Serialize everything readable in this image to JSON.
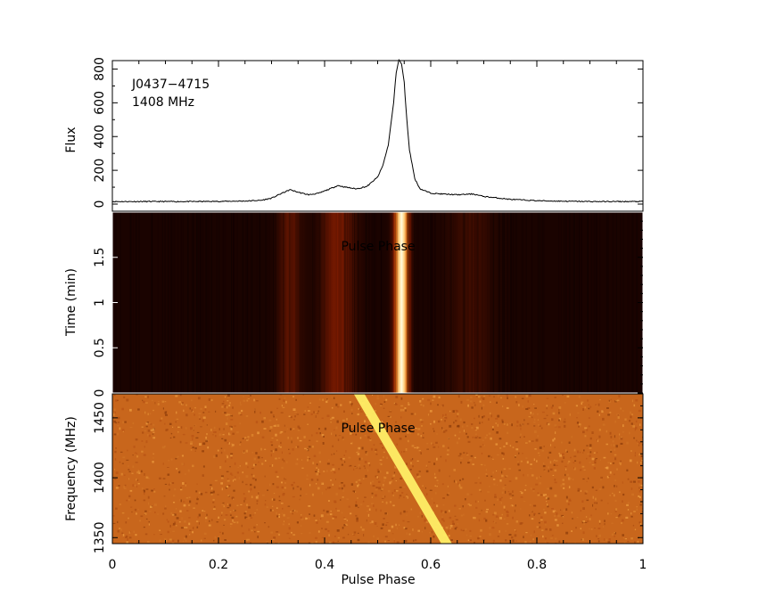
{
  "source": {
    "name": "J0437−4715",
    "frequency_label": "1408 MHz"
  },
  "chart_data": [
    {
      "type": "line",
      "panel": "profile",
      "ylabel": "Flux",
      "xlim": [
        0,
        1
      ],
      "ylim": [
        0,
        850
      ],
      "yticks": [
        "0",
        "200",
        "400",
        "600",
        "800"
      ],
      "annotations": [
        "J0437−4715",
        "1408 MHz"
      ],
      "x": [
        0.0,
        0.05,
        0.1,
        0.15,
        0.2,
        0.25,
        0.28,
        0.3,
        0.32,
        0.335,
        0.35,
        0.37,
        0.39,
        0.41,
        0.425,
        0.44,
        0.46,
        0.48,
        0.5,
        0.51,
        0.52,
        0.53,
        0.535,
        0.54,
        0.545,
        0.55,
        0.555,
        0.56,
        0.57,
        0.58,
        0.6,
        0.62,
        0.65,
        0.68,
        0.7,
        0.75,
        0.8,
        0.85,
        0.9,
        0.95,
        1.0
      ],
      "y": [
        15,
        15,
        15,
        15,
        16,
        18,
        22,
        35,
        65,
        85,
        70,
        55,
        65,
        90,
        110,
        100,
        90,
        105,
        160,
        230,
        350,
        600,
        780,
        855,
        830,
        720,
        500,
        320,
        150,
        90,
        65,
        60,
        55,
        60,
        45,
        28,
        20,
        17,
        15,
        15,
        15
      ]
    },
    {
      "type": "heatmap",
      "panel": "time-phase",
      "ylabel": "Time (min)",
      "overlay_label": "Pulse Phase",
      "xlim": [
        0,
        1
      ],
      "ylim": [
        0,
        2
      ],
      "yticks": [
        "0",
        "0.5",
        "1",
        "1.5"
      ],
      "features": [
        {
          "phase": 0.545,
          "width": 0.012,
          "intensity": 1.0
        },
        {
          "phase": 0.425,
          "width": 0.03,
          "intensity": 0.2
        },
        {
          "phase": 0.335,
          "width": 0.02,
          "intensity": 0.15
        },
        {
          "phase": 0.675,
          "width": 0.04,
          "intensity": 0.08
        }
      ]
    },
    {
      "type": "heatmap",
      "panel": "frequency-phase",
      "ylabel": "Frequency (MHz)",
      "xlabel": "Pulse Phase",
      "overlay_label": "Pulse Phase",
      "xlim": [
        0,
        1
      ],
      "ylim": [
        1345,
        1470
      ],
      "yticks": [
        "1350",
        "1400",
        "1450"
      ],
      "xticks": [
        "0",
        "0.2",
        "0.4",
        "0.6",
        "0.8",
        "1"
      ],
      "dispersed_pulse": {
        "phase_at_top": 0.465,
        "phase_at_bottom": 0.63
      }
    }
  ],
  "colors": {
    "heat_dark": "#1a0300",
    "heat_bright": "#fffce0",
    "noise_base": "#c8661c"
  }
}
